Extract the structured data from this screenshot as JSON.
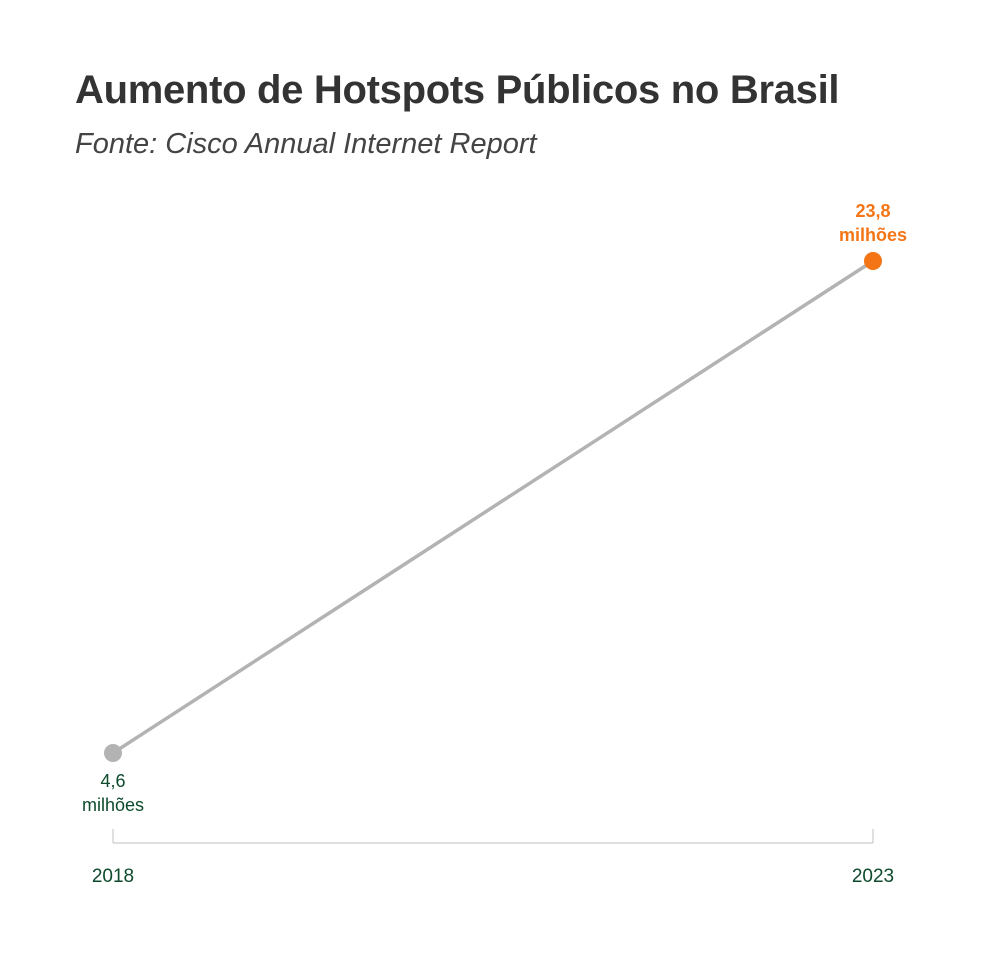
{
  "title": "Aumento de Hotspots Públicos no Brasil",
  "subtitle": "Fonte: Cisco Annual Internet Report",
  "colors": {
    "line": "#b3b3b3",
    "start_point": "#b3b3b3",
    "end_point": "#f47516",
    "end_label": "#f47516",
    "start_label": "#0d4a2c",
    "axis_label": "#0d4a2c",
    "axis_line": "#cccccc",
    "title": "#333333",
    "subtitle": "#444444"
  },
  "chart_data": {
    "type": "line",
    "title": "Aumento de Hotspots Públicos no Brasil",
    "subtitle": "Fonte: Cisco Annual Internet Report",
    "x": [
      "2018",
      "2023"
    ],
    "values": [
      4.6,
      23.8
    ],
    "unit": "milhões",
    "ylim": [
      4.6,
      23.8
    ],
    "grid": false,
    "points": [
      {
        "x": "2018",
        "y": 4.6,
        "label_value": "4,6",
        "label_unit": "milhões"
      },
      {
        "x": "2023",
        "y": 23.8,
        "label_value": "23,8",
        "label_unit": "milhões"
      }
    ],
    "xticks": [
      "2018",
      "2023"
    ]
  }
}
